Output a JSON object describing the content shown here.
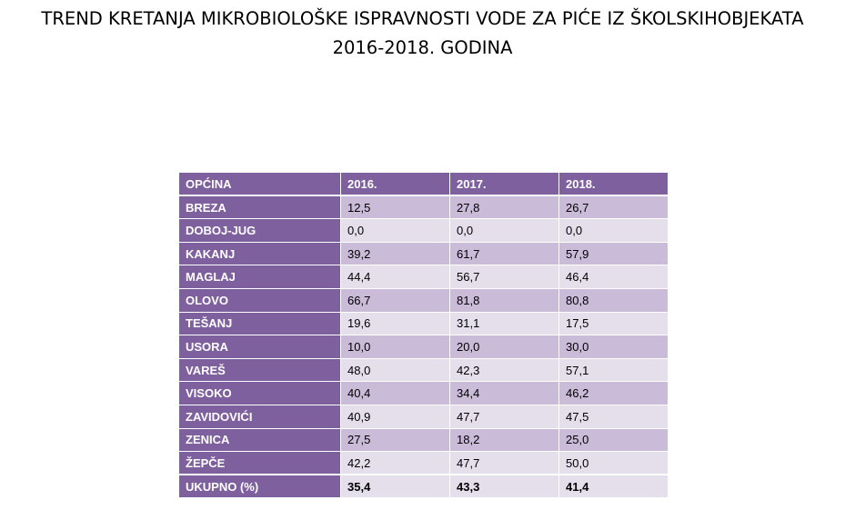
{
  "title": {
    "line1": "TREND KRETANJA MIKROBIOLOŠKE ISPRAVNOSTI VODE ZA PIĆE IZ ŠKOLSKIHOBJEKATA",
    "line2": "2016-2018. GODINA"
  },
  "chart_data": {
    "type": "table",
    "columns": [
      "OPĆINA",
      "2016.",
      "2017.",
      "2018."
    ],
    "rows": [
      {
        "name": "BREZA",
        "values": [
          "12,5",
          "27,8",
          "26,7"
        ]
      },
      {
        "name": "DOBOJ-JUG",
        "values": [
          "0,0",
          "0,0",
          "0,0"
        ]
      },
      {
        "name": "KAKANJ",
        "values": [
          "39,2",
          "61,7",
          "57,9"
        ]
      },
      {
        "name": "MAGLAJ",
        "values": [
          "44,4",
          "56,7",
          "46,4"
        ]
      },
      {
        "name": "OLOVO",
        "values": [
          "66,7",
          "81,8",
          "80,8"
        ]
      },
      {
        "name": "TEŠANJ",
        "values": [
          "19,6",
          "31,1",
          "17,5"
        ]
      },
      {
        "name": "USORA",
        "values": [
          "10,0",
          "20,0",
          "30,0"
        ]
      },
      {
        "name": "VAREŠ",
        "values": [
          "48,0",
          "42,3",
          "57,1"
        ]
      },
      {
        "name": "VISOKO",
        "values": [
          "40,4",
          "34,4",
          "46,2"
        ]
      },
      {
        "name": "ZAVIDOVIĆI",
        "values": [
          "40,9",
          "47,7",
          "47,5"
        ]
      },
      {
        "name": "ZENICA",
        "values": [
          "27,5",
          "18,2",
          "25,0"
        ]
      },
      {
        "name": "ŽEPČE",
        "values": [
          "42,2",
          "47,7",
          "50,0"
        ]
      }
    ],
    "total": {
      "name": "UKUPNO (%)",
      "values": [
        "35,4",
        "43,3",
        "41,4"
      ]
    }
  },
  "colors": {
    "header": "#7f609f",
    "row_dark": "#cabbd9",
    "row_light": "#e5dfec",
    "border": "#ffffff"
  }
}
